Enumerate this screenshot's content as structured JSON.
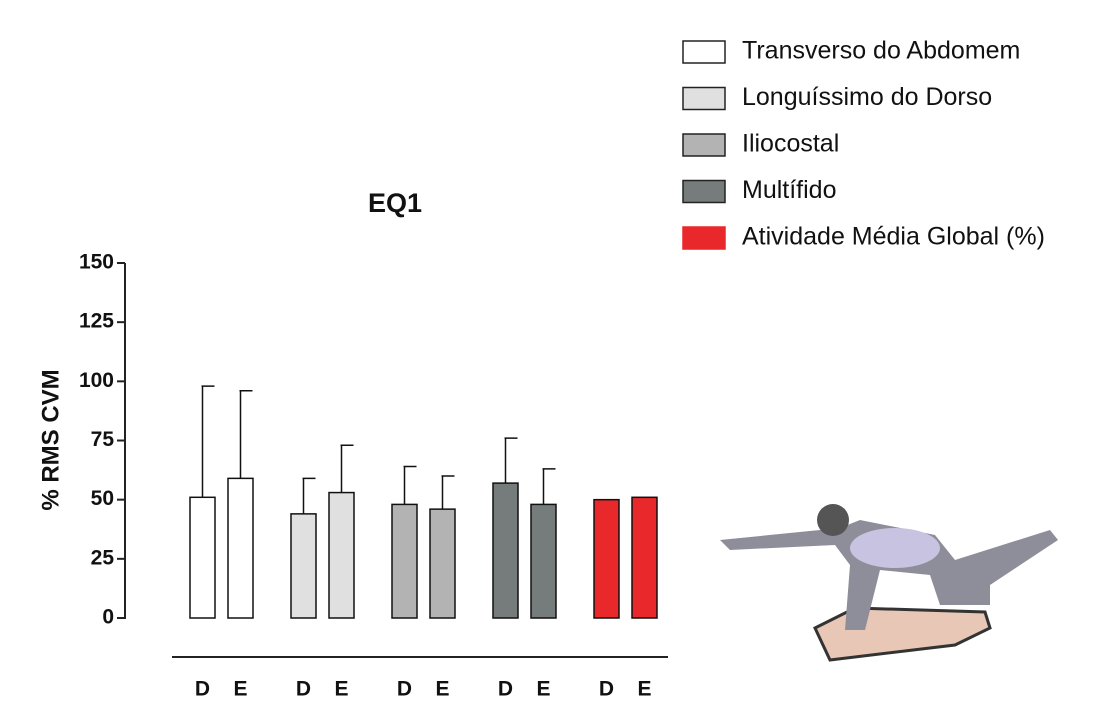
{
  "chart_data": {
    "type": "bar",
    "title": "EQ1",
    "y_label": "% RMS CVM",
    "categories": [
      "D",
      "E"
    ],
    "series": [
      {
        "name": "Transverso do Abdomem",
        "color": "#ffffff",
        "values": [
          51,
          59
        ],
        "errors": [
          47,
          37
        ]
      },
      {
        "name": "Longuíssimo do Dorso",
        "color": "#e0e0e0",
        "values": [
          44,
          53
        ],
        "errors": [
          15,
          20
        ]
      },
      {
        "name": "Iliocostal",
        "color": "#b3b3b3",
        "values": [
          48,
          46
        ],
        "errors": [
          16,
          14
        ]
      },
      {
        "name": "Multífido",
        "color": "#767b7b",
        "values": [
          57,
          48
        ],
        "errors": [
          19,
          15
        ]
      },
      {
        "name": "Atividade Média Global (%)",
        "color": "#e8282a",
        "values": [
          50,
          51
        ]
      }
    ],
    "ylim": [
      0,
      150
    ],
    "yticks": [
      0,
      25,
      50,
      75,
      100,
      125,
      150
    ]
  }
}
